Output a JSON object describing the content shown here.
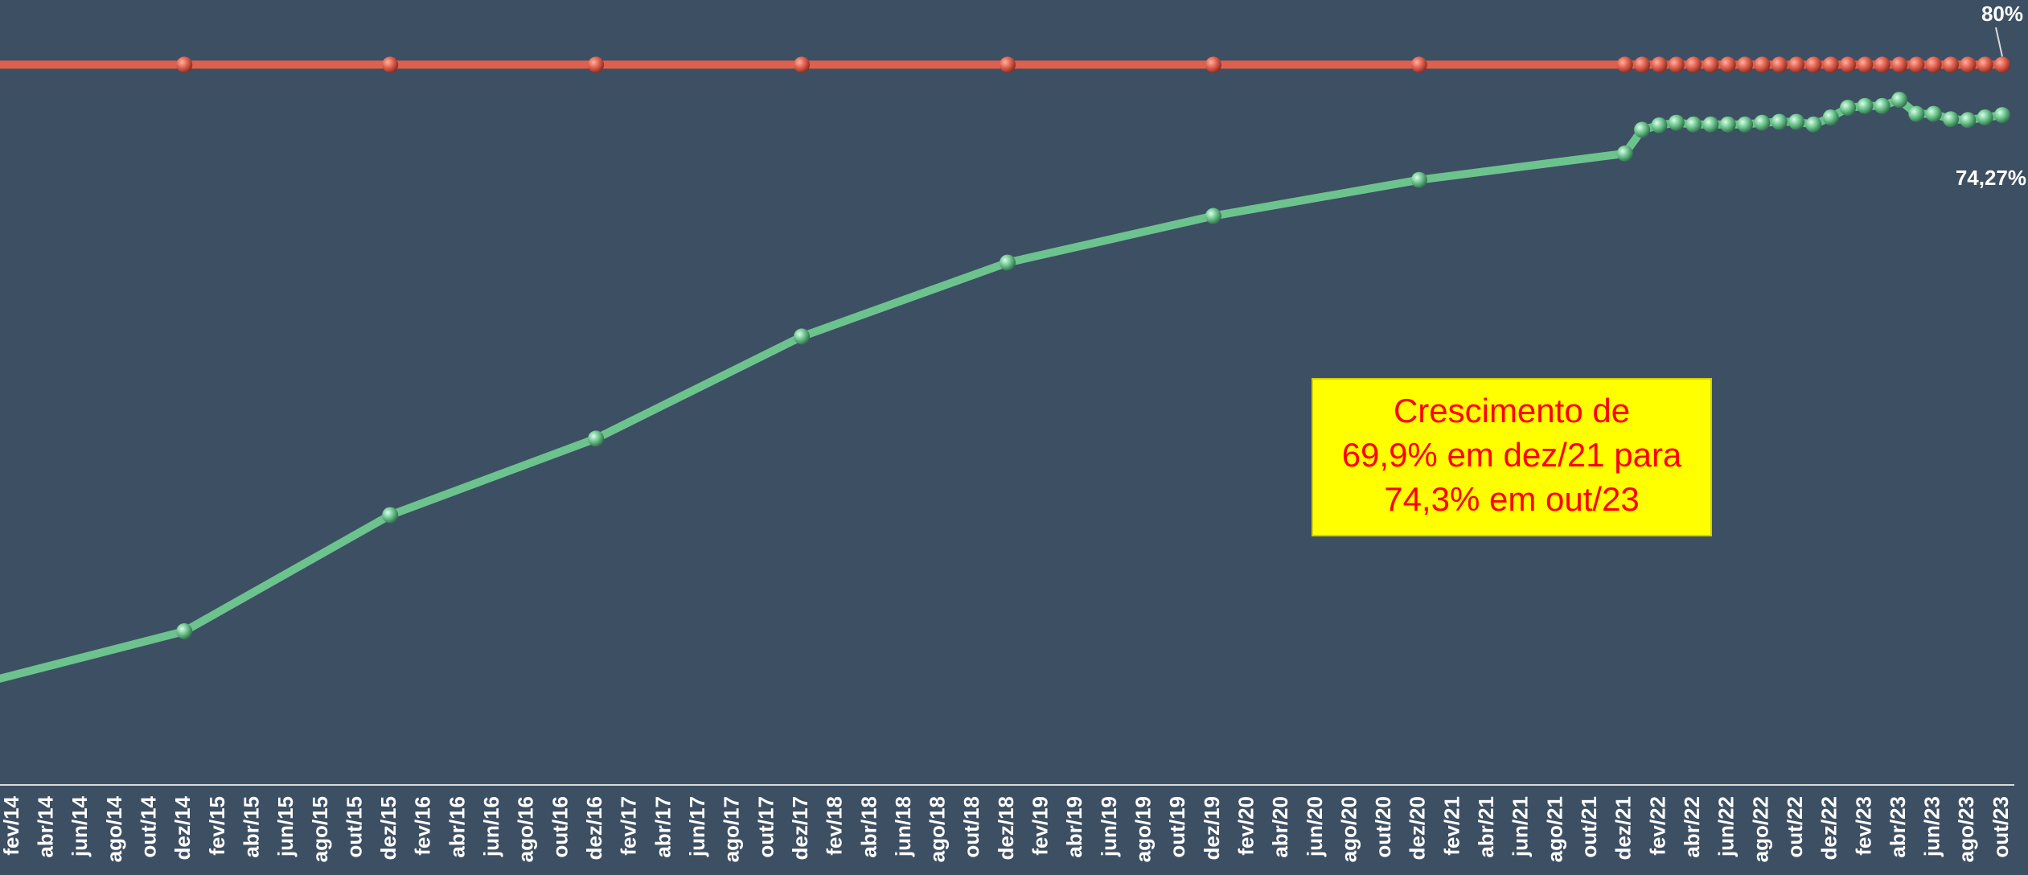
{
  "chart_data": {
    "type": "line",
    "categories": [
      null,
      "fev/14",
      null,
      "abr/14",
      null,
      "jun/14",
      null,
      "ago/14",
      null,
      "out/14",
      null,
      "dez/14",
      null,
      "fev/15",
      null,
      "abr/15",
      null,
      "jun/15",
      null,
      "ago/15",
      null,
      "out/15",
      null,
      "dez/15",
      null,
      "fev/16",
      null,
      "abr/16",
      null,
      "jun/16",
      null,
      "ago/16",
      null,
      "out/16",
      null,
      "dez/16",
      null,
      "fev/17",
      null,
      "abr/17",
      null,
      "jun/17",
      null,
      "ago/17",
      null,
      "out/17",
      null,
      "dez/17",
      null,
      "fev/18",
      null,
      "abr/18",
      null,
      "jun/18",
      null,
      "ago/18",
      null,
      "out/18",
      null,
      "dez/18",
      null,
      "fev/19",
      null,
      "abr/19",
      null,
      "jun/19",
      null,
      "ago/19",
      null,
      "out/19",
      null,
      "dez/19",
      null,
      "fev/20",
      null,
      "abr/20",
      null,
      "jun/20",
      null,
      "ago/20",
      null,
      "out/20",
      null,
      "dez/20",
      null,
      "fev/21",
      null,
      "abr/21",
      null,
      "jun/21",
      null,
      "ago/21",
      null,
      "out/21",
      null,
      "dez/21",
      null,
      "fev/22",
      null,
      "abr/22",
      null,
      "jun/22",
      null,
      "ago/22",
      null,
      "out/22",
      null,
      "dez/22",
      null,
      "fev/23",
      null,
      "abr/23",
      null,
      "jun/23",
      null,
      "ago/23",
      null,
      "out/23"
    ],
    "series": [
      {
        "color": "#e0604e",
        "x": [
          0,
          11,
          23,
          35,
          47,
          59,
          71,
          83,
          95,
          96,
          97,
          98,
          99,
          100,
          101,
          102,
          103,
          104,
          105,
          106,
          107,
          108,
          109,
          110,
          111,
          112,
          113,
          114,
          115,
          116,
          117
        ],
        "values": [
          80,
          80,
          80,
          80,
          80,
          80,
          80,
          80,
          80,
          80,
          80,
          80,
          80,
          80,
          80,
          80,
          80,
          80,
          80,
          80,
          80,
          80,
          80,
          80,
          80,
          80,
          80,
          80,
          80,
          80,
          80
        ],
        "value_labels": [
          null,
          null,
          null,
          null,
          null,
          null,
          null,
          null,
          null,
          null,
          null,
          null,
          null,
          null,
          null,
          null,
          null,
          null,
          null,
          null,
          null,
          null,
          null,
          null,
          null,
          null,
          null,
          null,
          null,
          null,
          "80%"
        ]
      },
      {
        "color": "#6cc38e",
        "x": [
          0,
          11,
          23,
          35,
          47,
          59,
          71,
          83,
          95,
          96,
          97,
          98,
          99,
          100,
          101,
          102,
          103,
          104,
          105,
          106,
          107,
          108,
          109,
          110,
          111,
          112,
          113,
          114,
          115,
          116,
          117
        ],
        "values": [
          10.1,
          15.6,
          28.8,
          37.5,
          49.1,
          57.5,
          62.8,
          66.9,
          69.9,
          72.6,
          73.1,
          73.4,
          73.2,
          73.2,
          73.2,
          73.2,
          73.4,
          73.5,
          73.5,
          73.2,
          74.0,
          75.1,
          75.3,
          75.3,
          76.0,
          74.4,
          74.4,
          73.8,
          73.7,
          74.0,
          74.27
        ],
        "value_labels": [
          null,
          null,
          null,
          null,
          null,
          null,
          null,
          null,
          null,
          null,
          null,
          null,
          null,
          null,
          null,
          null,
          null,
          null,
          null,
          null,
          null,
          null,
          null,
          null,
          null,
          null,
          null,
          null,
          null,
          null,
          "74,27%"
        ]
      }
    ],
    "ylim": [
      0,
      87
    ],
    "annotations": [
      "Crescimento de",
      "69,9% em dez/21 para",
      "74,3% em out/23"
    ]
  }
}
